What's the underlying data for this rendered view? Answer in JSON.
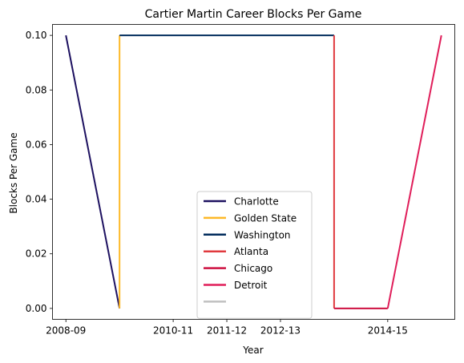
{
  "chart_data": {
    "type": "line",
    "title": "Cartier Martin Career Blocks Per Game",
    "xlabel": "Year",
    "ylabel": "Blocks Per Game",
    "x_ticks": [
      "2008-09",
      "2010-11",
      "2011-12",
      "2012-13",
      "2014-15"
    ],
    "y_ticks": [
      "0.00",
      "0.02",
      "0.04",
      "0.06",
      "0.08",
      "0.10"
    ],
    "ylim": [
      -0.004,
      0.104
    ],
    "xlim": [
      -0.25,
      7.25
    ],
    "grid": false,
    "legend_position": "lower center",
    "series": [
      {
        "name": "Charlotte",
        "color": "#1d1160",
        "points": [
          [
            0,
            0.1
          ],
          [
            1,
            0.0
          ]
        ]
      },
      {
        "name": "Golden State",
        "color": "#fdb927",
        "points": [
          [
            1,
            0.0
          ],
          [
            1,
            0.1
          ]
        ]
      },
      {
        "name": "Washington",
        "color": "#002b5c",
        "points": [
          [
            1,
            0.1
          ],
          [
            5,
            0.1
          ]
        ]
      },
      {
        "name": "Atlanta",
        "color": "#e03a3e",
        "points": [
          [
            5,
            0.1
          ],
          [
            5,
            0.0
          ]
        ]
      },
      {
        "name": "Chicago",
        "color": "#ce1141",
        "points": [
          [
            5,
            0.0
          ],
          [
            6,
            0.0
          ]
        ]
      },
      {
        "name": "Detroit",
        "color": "#e01e5a",
        "points": [
          [
            6,
            0.0
          ],
          [
            7,
            0.1
          ]
        ]
      },
      {
        "name": "",
        "color": "#c0c0c0",
        "points": []
      }
    ]
  }
}
